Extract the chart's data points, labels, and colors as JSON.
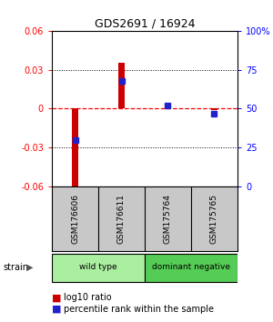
{
  "title": "GDS2691 / 16924",
  "samples": [
    "GSM176606",
    "GSM176611",
    "GSM175764",
    "GSM175765"
  ],
  "log10_ratio": [
    -0.063,
    0.035,
    0.003,
    -0.001
  ],
  "percentile_rank": [
    30,
    68,
    52,
    47
  ],
  "ylim": [
    -0.06,
    0.06
  ],
  "yticks_left": [
    -0.06,
    -0.03,
    0,
    0.03,
    0.06
  ],
  "yticks_right": [
    0,
    25,
    50,
    75,
    100
  ],
  "bar_color": "#CC0000",
  "dot_color": "#2222CC",
  "zero_line_color": "#FF0000",
  "grid_color": "#000000",
  "bg_color": "#FFFFFF",
  "sample_box_color": "#C8C8C8",
  "wild_type_color": "#AAEEA0",
  "dominant_neg_color": "#55CC55",
  "legend_red": "#CC0000",
  "legend_blue": "#2222CC",
  "groups": [
    {
      "label": "wild type",
      "color": "#AAEEA0",
      "start": 0,
      "end": 2
    },
    {
      "label": "dominant negative",
      "color": "#55CC55",
      "start": 2,
      "end": 4
    }
  ]
}
